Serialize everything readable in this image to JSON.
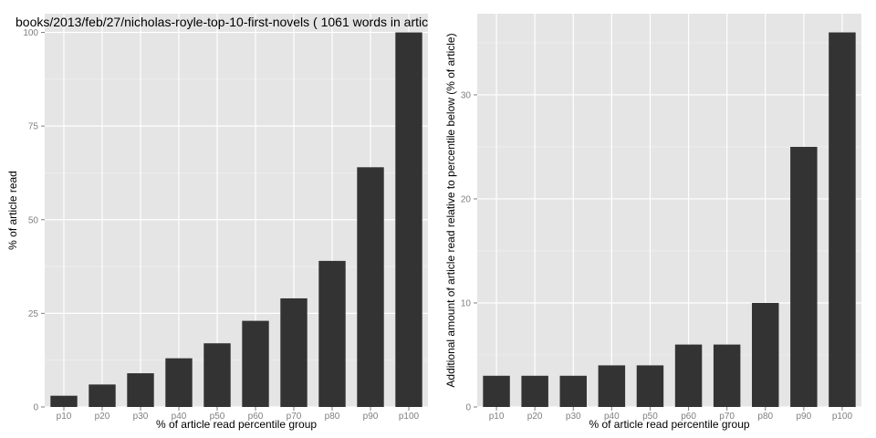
{
  "chart_data": [
    {
      "type": "bar",
      "title": "books/2013/feb/27/nicholas-royle-top-10-first-novels ( 1061 words in artic",
      "xlabel": "% of article read percentile group",
      "ylabel": "% of article read",
      "categories": [
        "p10",
        "p20",
        "p30",
        "p40",
        "p50",
        "p60",
        "p70",
        "p80",
        "p90",
        "p100"
      ],
      "values": [
        3,
        6,
        9,
        13,
        17,
        23,
        29,
        39,
        64,
        100
      ],
      "ylim": [
        0,
        105
      ],
      "yticks": [
        0,
        25,
        50,
        75,
        100
      ],
      "grid": true,
      "bar_color": "#333333",
      "panel_color": "#e5e5e5"
    },
    {
      "type": "bar",
      "title": "",
      "xlabel": "% of article read percentile group",
      "ylabel": "Additional amount of article read relative to percentile below (% of article)",
      "categories": [
        "p10",
        "p20",
        "p30",
        "p40",
        "p50",
        "p60",
        "p70",
        "p80",
        "p90",
        "p100"
      ],
      "values": [
        3,
        3,
        3,
        4,
        4,
        6,
        6,
        10,
        25,
        36
      ],
      "ylim": [
        0,
        37.8
      ],
      "yticks": [
        0,
        10,
        20,
        30
      ],
      "grid": true,
      "bar_color": "#333333",
      "panel_color": "#e5e5e5"
    }
  ]
}
